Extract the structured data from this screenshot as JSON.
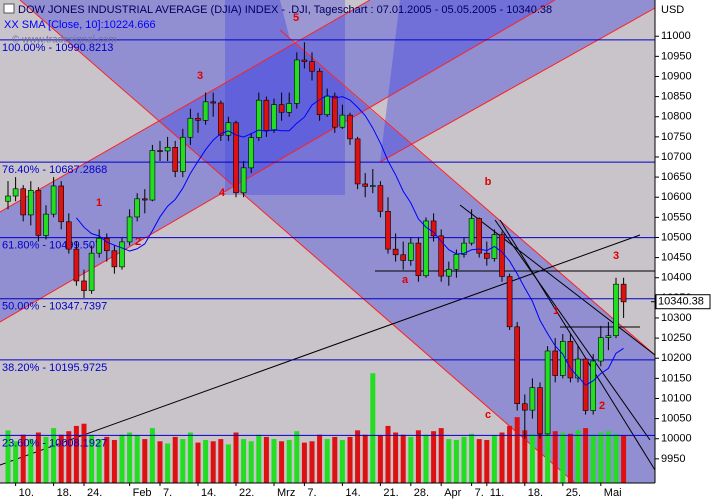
{
  "chart_data": {
    "type": "candlestick",
    "title": "DOW JONES INDUSTRIAL AVERAGE (DJIA) INDEX - .DJI, Tageschart : 07.01.2005 - 05.05.2005 - 10340.38",
    "watermark": "© www.tradesignal.com",
    "currency": "USD",
    "categories": [
      null,
      "10.",
      null,
      null,
      null,
      null,
      "18.",
      null,
      null,
      null,
      "24.",
      null,
      null,
      null,
      null,
      null,
      "Feb",
      null,
      null,
      null,
      "7.",
      null,
      null,
      null,
      null,
      "14.",
      null,
      null,
      null,
      null,
      "22.",
      null,
      null,
      null,
      null,
      "Mrz",
      null,
      null,
      null,
      "7.",
      null,
      null,
      null,
      null,
      "14.",
      null,
      null,
      null,
      null,
      "21.",
      null,
      null,
      null,
      "28.",
      null,
      null,
      null,
      "Apr",
      null,
      null,
      null,
      "7.",
      null,
      "11.",
      null,
      null,
      null,
      null,
      "18.",
      null,
      null,
      null,
      null,
      "25.",
      null,
      null,
      null,
      null,
      "Mai",
      null,
      null,
      null
    ],
    "open": [
      10590,
      10603,
      10621,
      10556,
      10617,
      10505,
      10558,
      10628,
      10539,
      10471,
      10392,
      10368,
      10461,
      10498,
      10467,
      10427,
      10489,
      10551,
      10596,
      10593,
      10716,
      10715,
      10724,
      10664,
      10749,
      10796,
      10791,
      10837,
      10834,
      10754,
      10785,
      10611,
      10673,
      10748,
      10841,
      10766,
      10830,
      10811,
      10833,
      10941,
      10937,
      10913,
      10805,
      10851,
      10774,
      10804,
      10745,
      10633,
      10627,
      10629,
      10565,
      10471,
      10457,
      10443,
      10486,
      10405,
      10541,
      10504,
      10404,
      10421,
      10458,
      10486,
      10547,
      10461,
      10448,
      10507,
      10403,
      10278,
      10087,
      10071,
      10127,
      10012,
      10218,
      10157,
      10242,
      10151,
      10198,
      10070,
      10193,
      10251,
      10256,
      10384
    ],
    "high": [
      10640,
      10650,
      10630,
      10640,
      10625,
      10580,
      10650,
      10640,
      10560,
      10490,
      10420,
      10480,
      10520,
      10510,
      10480,
      10500,
      10570,
      10610,
      10620,
      10730,
      10740,
      10750,
      10740,
      10770,
      10820,
      10810,
      10860,
      10860,
      10840,
      10800,
      10790,
      10690,
      10760,
      10860,
      10850,
      10845,
      10860,
      10860,
      10960,
      10985,
      10960,
      10920,
      10870,
      10860,
      10830,
      10810,
      10750,
      10660,
      10670,
      10640,
      10600,
      10510,
      10490,
      10500,
      10500,
      10550,
      10560,
      10520,
      10440,
      10470,
      10500,
      10570,
      10550,
      10490,
      10520,
      10515,
      10410,
      10290,
      10110,
      10150,
      10140,
      10230,
      10250,
      10260,
      10260,
      10230,
      10200,
      10210,
      10280,
      10290,
      10400,
      10400
    ],
    "low": [
      10570,
      10590,
      10540,
      10530,
      10490,
      10495,
      10550,
      10520,
      10460,
      10380,
      10350,
      10360,
      10450,
      10440,
      10410,
      10420,
      10480,
      10540,
      10560,
      10590,
      10690,
      10690,
      10650,
      10650,
      10730,
      10760,
      10780,
      10800,
      10740,
      10740,
      10600,
      10600,
      10660,
      10740,
      10750,
      10760,
      10790,
      10800,
      10820,
      10920,
      10890,
      10790,
      10800,
      10760,
      10770,
      10730,
      10620,
      10600,
      10610,
      10550,
      10460,
      10440,
      10420,
      10430,
      10390,
      10400,
      10490,
      10390,
      10380,
      10400,
      10450,
      10480,
      10450,
      10430,
      10440,
      10390,
      10270,
      10070,
      10000,
      10050,
      10000,
      10010,
      10140,
      10150,
      10140,
      10140,
      10060,
      10060,
      10180,
      10220,
      10250,
      10300
    ],
    "close": [
      10603,
      10621,
      10556,
      10617,
      10505,
      10558,
      10628,
      10539,
      10471,
      10392,
      10368,
      10461,
      10498,
      10467,
      10427,
      10489,
      10551,
      10596,
      10593,
      10716,
      10715,
      10724,
      10664,
      10749,
      10796,
      10791,
      10837,
      10834,
      10754,
      10785,
      10611,
      10673,
      10748,
      10841,
      10766,
      10830,
      10811,
      10833,
      10941,
      10937,
      10913,
      10805,
      10851,
      10774,
      10804,
      10745,
      10633,
      10627,
      10629,
      10565,
      10471,
      10457,
      10443,
      10486,
      10405,
      10541,
      10504,
      10404,
      10421,
      10458,
      10486,
      10547,
      10461,
      10448,
      10507,
      10403,
      10278,
      10087,
      10071,
      10127,
      10012,
      10218,
      10157,
      10242,
      10151,
      10198,
      10070,
      10193,
      10251,
      10256,
      10384,
      10340
    ],
    "up_color": "#22dd22",
    "down_color": "#dd1111",
    "sma": {
      "name": "XX SMA [Close, 10]:10224.666",
      "color": "#0000ff",
      "values": [
        null,
        null,
        null,
        null,
        null,
        null,
        null,
        null,
        null,
        10549,
        10525.5,
        10509.5,
        10503.7,
        10488.7,
        10480.9,
        10474,
        10466.3,
        10472,
        10484.2,
        10516.6,
        10551.3,
        10577.6,
        10594.2,
        10622.4,
        10659.3,
        10689.5,
        10718.1,
        10741.9,
        10758,
        10764.9,
        10754.5,
        10749.4,
        10757.8,
        10767,
        10764,
        10767.9,
        10765.3,
        10765.2,
        10783.9,
        10799.1,
        10829.3,
        10842.5,
        10852.8,
        10846.1,
        10849.9,
        10841.4,
        10823.6,
        10803,
        10771.8,
        10734.6,
        10690.4,
        10655.6,
        10614.8,
        10586,
        10546.1,
        10525.7,
        10512.8,
        10490.5,
        10469.7,
        10459,
        10460.5,
        10469.5,
        10471.3,
        10467.5,
        10477.7,
        10463.9,
        10441.3,
        10409.6,
        10374.6,
        10341.5,
        10294.1,
        10261.2,
        10230.8,
        10210.2,
        10174.6,
        10154.1,
        10133.3,
        10143.9,
        10161.9,
        10174.8,
        10212,
        10224.666
      ]
    },
    "volume": {
      "ylim": [
        0,
        1100
      ],
      "values": [
        120,
        95,
        110,
        100,
        115,
        105,
        125,
        110,
        118,
        130,
        135,
        110,
        100,
        105,
        98,
        110,
        115,
        108,
        100,
        125,
        95,
        90,
        105,
        100,
        115,
        92,
        98,
        95,
        100,
        88,
        115,
        100,
        95,
        110,
        105,
        100,
        95,
        98,
        118,
        92,
        95,
        110,
        100,
        105,
        98,
        105,
        120,
        110,
        250,
        108,
        130,
        115,
        110,
        105,
        120,
        110,
        118,
        125,
        100,
        98,
        105,
        112,
        100,
        98,
        108,
        115,
        130,
        150,
        120,
        112,
        135,
        128,
        118,
        115,
        112,
        120,
        125,
        110,
        115,
        118,
        112,
        108
      ]
    },
    "fib_color": "#0000c8",
    "fib_levels": [
      {
        "label": "100.00% - 10990.8213",
        "value": 10990.8213
      },
      {
        "label": "76.40% - 10687.2868",
        "value": 10687.2868
      },
      {
        "label": "61.80% - 10499.507",
        "value": 10499.507
      },
      {
        "label": "50.00% - 10347.7397",
        "value": 10347.7397
      },
      {
        "label": "38.20% - 10195.9725",
        "value": 10195.9725
      },
      {
        "label": "23.60% - 10008.1927",
        "value": 10008.1927
      }
    ],
    "last_price": 10340.38,
    "annotations": [
      "5",
      "3",
      "1",
      "2",
      "4",
      "a",
      "b",
      "c",
      "1",
      "2",
      "3"
    ],
    "ylim": [
      9890,
      11090
    ],
    "yticks": [
      9950,
      10000,
      10050,
      10100,
      10150,
      10200,
      10250,
      10300,
      10350,
      10400,
      10450,
      10500,
      10550,
      10600,
      10650,
      10700,
      10750,
      10800,
      10850,
      10900,
      10950,
      11000
    ]
  }
}
